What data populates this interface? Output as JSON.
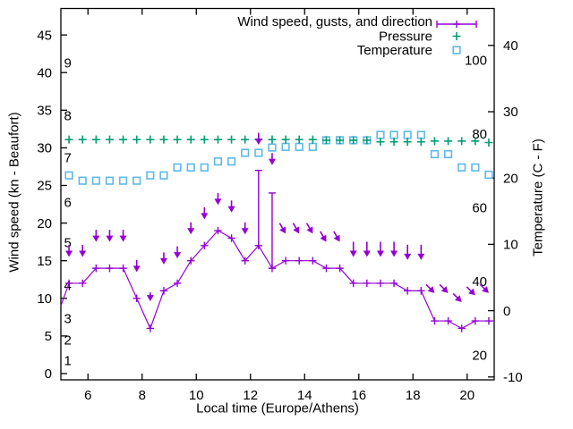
{
  "chart_data": {
    "type": "line",
    "title": "",
    "xlabel": "Local time (Europe/Athens)",
    "ylabel_left": "Wind speed (kn - Beaufort)",
    "ylabel_right": "Temperature (C - F)",
    "x_range": [
      5,
      21
    ],
    "x_ticks": [
      6,
      8,
      10,
      12,
      14,
      16,
      18,
      20
    ],
    "y_left_range": [
      0,
      45
    ],
    "y_left_ticks": [
      0,
      5,
      10,
      15,
      20,
      25,
      30,
      35,
      40,
      45
    ],
    "y_right_range_c": [
      -10,
      45
    ],
    "y_right_ticks_c": [
      -10,
      0,
      10,
      20,
      30,
      40
    ],
    "grid": false,
    "legend_position": "top-right-inside",
    "legend": [
      {
        "label": "Wind speed, gusts, and direction",
        "marker": "errorbar",
        "color": "#9400d3"
      },
      {
        "label": "Pressure",
        "marker": "plus",
        "color": "#009e73"
      },
      {
        "label": "Temperature",
        "marker": "square",
        "color": "#5eb8e8"
      }
    ],
    "beaufort_labels": [
      {
        "label": "1",
        "kn": 1.75
      },
      {
        "label": "2",
        "kn": 4.5
      },
      {
        "label": "3",
        "kn": 7.35
      },
      {
        "label": "4",
        "kn": 11.7
      },
      {
        "label": "5",
        "kn": 17.4
      },
      {
        "label": "6",
        "kn": 22.75
      },
      {
        "label": "7",
        "kn": 28.7
      },
      {
        "label": "8",
        "kn": 34.3
      },
      {
        "label": "9",
        "kn": 41.3
      }
    ],
    "fahrenheit_labels": [
      20,
      40,
      60,
      80,
      100
    ],
    "x_hours": [
      5.3,
      5.8,
      6.3,
      6.8,
      7.3,
      7.8,
      8.3,
      8.8,
      9.3,
      9.8,
      10.3,
      10.8,
      11.3,
      11.8,
      12.3,
      12.8,
      13.3,
      13.8,
      14.3,
      14.8,
      15.3,
      15.8,
      16.3,
      16.8,
      17.3,
      17.8,
      18.3,
      18.8,
      19.3,
      19.8,
      20.3,
      20.8
    ],
    "wind": {
      "speed_kn": [
        12,
        12,
        14,
        14,
        14,
        10,
        6,
        11,
        12,
        15,
        17,
        19,
        18,
        15,
        17,
        14,
        15,
        15,
        15,
        14,
        14,
        12,
        12,
        12,
        12,
        11,
        11,
        7,
        7,
        6,
        7,
        7
      ],
      "line_start": {
        "x": 5.0,
        "kn": 9
      },
      "line_end": {
        "x": 21.0,
        "kn": 7
      },
      "gust_bars": [
        {
          "x": 12.3,
          "from_kn": 17,
          "to_kn": 27
        },
        {
          "x": 12.8,
          "from_kn": 14,
          "to_kn": 24
        }
      ],
      "arrows": [
        {
          "x": 5.3,
          "tip_kn": 15.5,
          "angle_deg": 0,
          "size": "m"
        },
        {
          "x": 5.8,
          "tip_kn": 15.5,
          "angle_deg": 0,
          "size": "m"
        },
        {
          "x": 6.3,
          "tip_kn": 17.5,
          "angle_deg": 0,
          "size": "m"
        },
        {
          "x": 6.8,
          "tip_kn": 17.5,
          "angle_deg": 0,
          "size": "m"
        },
        {
          "x": 7.3,
          "tip_kn": 17.5,
          "angle_deg": 0,
          "size": "m"
        },
        {
          "x": 7.8,
          "tip_kn": 13.5,
          "angle_deg": 0,
          "size": "m"
        },
        {
          "x": 8.3,
          "tip_kn": 9.6,
          "angle_deg": 0,
          "size": "s"
        },
        {
          "x": 8.8,
          "tip_kn": 14.5,
          "angle_deg": 0,
          "size": "m"
        },
        {
          "x": 9.3,
          "tip_kn": 15.3,
          "angle_deg": 0,
          "size": "m"
        },
        {
          "x": 9.8,
          "tip_kn": 18.5,
          "angle_deg": 0,
          "size": "m"
        },
        {
          "x": 10.3,
          "tip_kn": 20.5,
          "angle_deg": 0,
          "size": "m"
        },
        {
          "x": 10.8,
          "tip_kn": 22.4,
          "angle_deg": 0,
          "size": "m"
        },
        {
          "x": 11.3,
          "tip_kn": 21.4,
          "angle_deg": 0,
          "size": "m"
        },
        {
          "x": 11.8,
          "tip_kn": 18.5,
          "angle_deg": 0,
          "size": "m"
        },
        {
          "x": 12.3,
          "tip_kn": 30.4,
          "angle_deg": 0,
          "size": "m"
        },
        {
          "x": 12.8,
          "tip_kn": 27.7,
          "angle_deg": 0,
          "size": "m"
        },
        {
          "x": 13.3,
          "tip_kn": 18.6,
          "angle_deg": 30,
          "size": "m"
        },
        {
          "x": 13.8,
          "tip_kn": 18.6,
          "angle_deg": 30,
          "size": "m"
        },
        {
          "x": 14.3,
          "tip_kn": 18.6,
          "angle_deg": 30,
          "size": "m"
        },
        {
          "x": 14.8,
          "tip_kn": 17.5,
          "angle_deg": 30,
          "size": "m"
        },
        {
          "x": 15.3,
          "tip_kn": 17.5,
          "angle_deg": 30,
          "size": "m"
        },
        {
          "x": 15.8,
          "tip_kn": 15.5,
          "angle_deg": 0,
          "size": "l"
        },
        {
          "x": 16.3,
          "tip_kn": 15.5,
          "angle_deg": 0,
          "size": "l"
        },
        {
          "x": 16.8,
          "tip_kn": 15.5,
          "angle_deg": 0,
          "size": "l"
        },
        {
          "x": 17.3,
          "tip_kn": 15.5,
          "angle_deg": 0,
          "size": "l"
        },
        {
          "x": 17.8,
          "tip_kn": 15.1,
          "angle_deg": 0,
          "size": "l"
        },
        {
          "x": 18.3,
          "tip_kn": 15.1,
          "angle_deg": 0,
          "size": "l"
        },
        {
          "x": 18.8,
          "tip_kn": 10.7,
          "angle_deg": 45,
          "size": "m"
        },
        {
          "x": 19.3,
          "tip_kn": 10.7,
          "angle_deg": 45,
          "size": "m"
        },
        {
          "x": 19.8,
          "tip_kn": 9.5,
          "angle_deg": 45,
          "size": "m"
        },
        {
          "x": 20.3,
          "tip_kn": 10.4,
          "angle_deg": 45,
          "size": "m"
        },
        {
          "x": 20.8,
          "tip_kn": 10.7,
          "angle_deg": 45,
          "size": "m"
        }
      ]
    },
    "pressure": {
      "display_kn_axis": [
        31.1,
        31.1,
        31.1,
        31.1,
        31.1,
        31.1,
        31.1,
        31.1,
        31.1,
        31.1,
        31.1,
        31.1,
        31.1,
        31.1,
        31.1,
        31.1,
        31.1,
        31.1,
        31.1,
        31.0,
        31.0,
        31.0,
        31.0,
        30.8,
        30.8,
        30.8,
        30.8,
        30.9,
        30.9,
        30.9,
        30.9,
        30.7
      ]
    },
    "temperature": {
      "celsius": [
        20.4,
        19.6,
        19.6,
        19.6,
        19.6,
        19.6,
        20.4,
        20.4,
        21.6,
        21.6,
        21.6,
        22.5,
        22.5,
        23.8,
        23.8,
        24.6,
        24.7,
        24.7,
        24.7,
        25.7,
        25.7,
        25.7,
        25.7,
        26.5,
        26.5,
        26.5,
        26.5,
        23.6,
        23.6,
        21.6,
        21.6,
        20.5
      ]
    },
    "frame_color": "#000000",
    "background_color": "#ffffff"
  }
}
